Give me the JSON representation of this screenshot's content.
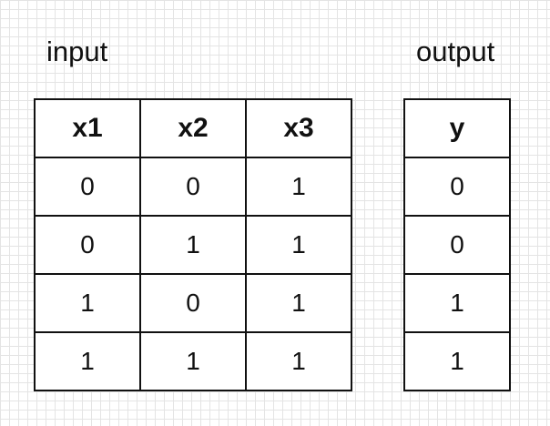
{
  "input": {
    "caption": "input",
    "headers": [
      "x1",
      "x2",
      "x3"
    ],
    "rows": [
      [
        "0",
        "0",
        "1"
      ],
      [
        "0",
        "1",
        "1"
      ],
      [
        "1",
        "0",
        "1"
      ],
      [
        "1",
        "1",
        "1"
      ]
    ]
  },
  "output": {
    "caption": "output",
    "headers": [
      "y"
    ],
    "rows": [
      [
        "0"
      ],
      [
        "0"
      ],
      [
        "1"
      ],
      [
        "1"
      ]
    ]
  }
}
